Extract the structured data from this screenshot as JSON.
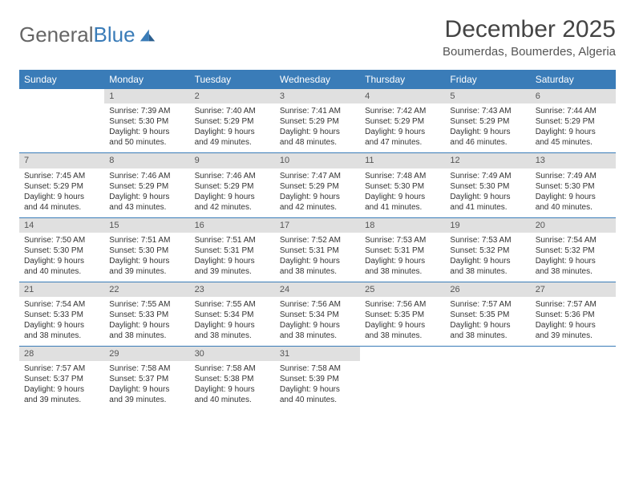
{
  "brand": {
    "part1": "General",
    "part2": "Blue"
  },
  "title": "December 2025",
  "location": "Boumerdas, Boumerdes, Algeria",
  "colors": {
    "accent": "#3a7cb8",
    "daynum_bg": "#e0e0e0",
    "text": "#333333",
    "bg": "#ffffff"
  },
  "fonts": {
    "title_size": 30,
    "location_size": 15,
    "weekday_size": 12,
    "cell_size": 10
  },
  "weekdays": [
    "Sunday",
    "Monday",
    "Tuesday",
    "Wednesday",
    "Thursday",
    "Friday",
    "Saturday"
  ],
  "weeks": [
    [
      {
        "n": "",
        "sunrise": "",
        "sunset": "",
        "daylight": ""
      },
      {
        "n": "1",
        "sunrise": "7:39 AM",
        "sunset": "5:30 PM",
        "daylight": "9 hours and 50 minutes."
      },
      {
        "n": "2",
        "sunrise": "7:40 AM",
        "sunset": "5:29 PM",
        "daylight": "9 hours and 49 minutes."
      },
      {
        "n": "3",
        "sunrise": "7:41 AM",
        "sunset": "5:29 PM",
        "daylight": "9 hours and 48 minutes."
      },
      {
        "n": "4",
        "sunrise": "7:42 AM",
        "sunset": "5:29 PM",
        "daylight": "9 hours and 47 minutes."
      },
      {
        "n": "5",
        "sunrise": "7:43 AM",
        "sunset": "5:29 PM",
        "daylight": "9 hours and 46 minutes."
      },
      {
        "n": "6",
        "sunrise": "7:44 AM",
        "sunset": "5:29 PM",
        "daylight": "9 hours and 45 minutes."
      }
    ],
    [
      {
        "n": "7",
        "sunrise": "7:45 AM",
        "sunset": "5:29 PM",
        "daylight": "9 hours and 44 minutes."
      },
      {
        "n": "8",
        "sunrise": "7:46 AM",
        "sunset": "5:29 PM",
        "daylight": "9 hours and 43 minutes."
      },
      {
        "n": "9",
        "sunrise": "7:46 AM",
        "sunset": "5:29 PM",
        "daylight": "9 hours and 42 minutes."
      },
      {
        "n": "10",
        "sunrise": "7:47 AM",
        "sunset": "5:29 PM",
        "daylight": "9 hours and 42 minutes."
      },
      {
        "n": "11",
        "sunrise": "7:48 AM",
        "sunset": "5:30 PM",
        "daylight": "9 hours and 41 minutes."
      },
      {
        "n": "12",
        "sunrise": "7:49 AM",
        "sunset": "5:30 PM",
        "daylight": "9 hours and 41 minutes."
      },
      {
        "n": "13",
        "sunrise": "7:49 AM",
        "sunset": "5:30 PM",
        "daylight": "9 hours and 40 minutes."
      }
    ],
    [
      {
        "n": "14",
        "sunrise": "7:50 AM",
        "sunset": "5:30 PM",
        "daylight": "9 hours and 40 minutes."
      },
      {
        "n": "15",
        "sunrise": "7:51 AM",
        "sunset": "5:30 PM",
        "daylight": "9 hours and 39 minutes."
      },
      {
        "n": "16",
        "sunrise": "7:51 AM",
        "sunset": "5:31 PM",
        "daylight": "9 hours and 39 minutes."
      },
      {
        "n": "17",
        "sunrise": "7:52 AM",
        "sunset": "5:31 PM",
        "daylight": "9 hours and 38 minutes."
      },
      {
        "n": "18",
        "sunrise": "7:53 AM",
        "sunset": "5:31 PM",
        "daylight": "9 hours and 38 minutes."
      },
      {
        "n": "19",
        "sunrise": "7:53 AM",
        "sunset": "5:32 PM",
        "daylight": "9 hours and 38 minutes."
      },
      {
        "n": "20",
        "sunrise": "7:54 AM",
        "sunset": "5:32 PM",
        "daylight": "9 hours and 38 minutes."
      }
    ],
    [
      {
        "n": "21",
        "sunrise": "7:54 AM",
        "sunset": "5:33 PM",
        "daylight": "9 hours and 38 minutes."
      },
      {
        "n": "22",
        "sunrise": "7:55 AM",
        "sunset": "5:33 PM",
        "daylight": "9 hours and 38 minutes."
      },
      {
        "n": "23",
        "sunrise": "7:55 AM",
        "sunset": "5:34 PM",
        "daylight": "9 hours and 38 minutes."
      },
      {
        "n": "24",
        "sunrise": "7:56 AM",
        "sunset": "5:34 PM",
        "daylight": "9 hours and 38 minutes."
      },
      {
        "n": "25",
        "sunrise": "7:56 AM",
        "sunset": "5:35 PM",
        "daylight": "9 hours and 38 minutes."
      },
      {
        "n": "26",
        "sunrise": "7:57 AM",
        "sunset": "5:35 PM",
        "daylight": "9 hours and 38 minutes."
      },
      {
        "n": "27",
        "sunrise": "7:57 AM",
        "sunset": "5:36 PM",
        "daylight": "9 hours and 39 minutes."
      }
    ],
    [
      {
        "n": "28",
        "sunrise": "7:57 AM",
        "sunset": "5:37 PM",
        "daylight": "9 hours and 39 minutes."
      },
      {
        "n": "29",
        "sunrise": "7:58 AM",
        "sunset": "5:37 PM",
        "daylight": "9 hours and 39 minutes."
      },
      {
        "n": "30",
        "sunrise": "7:58 AM",
        "sunset": "5:38 PM",
        "daylight": "9 hours and 40 minutes."
      },
      {
        "n": "31",
        "sunrise": "7:58 AM",
        "sunset": "5:39 PM",
        "daylight": "9 hours and 40 minutes."
      },
      {
        "n": "",
        "sunrise": "",
        "sunset": "",
        "daylight": ""
      },
      {
        "n": "",
        "sunrise": "",
        "sunset": "",
        "daylight": ""
      },
      {
        "n": "",
        "sunrise": "",
        "sunset": "",
        "daylight": ""
      }
    ]
  ],
  "labels": {
    "sunrise": "Sunrise:",
    "sunset": "Sunset:",
    "daylight": "Daylight:"
  }
}
